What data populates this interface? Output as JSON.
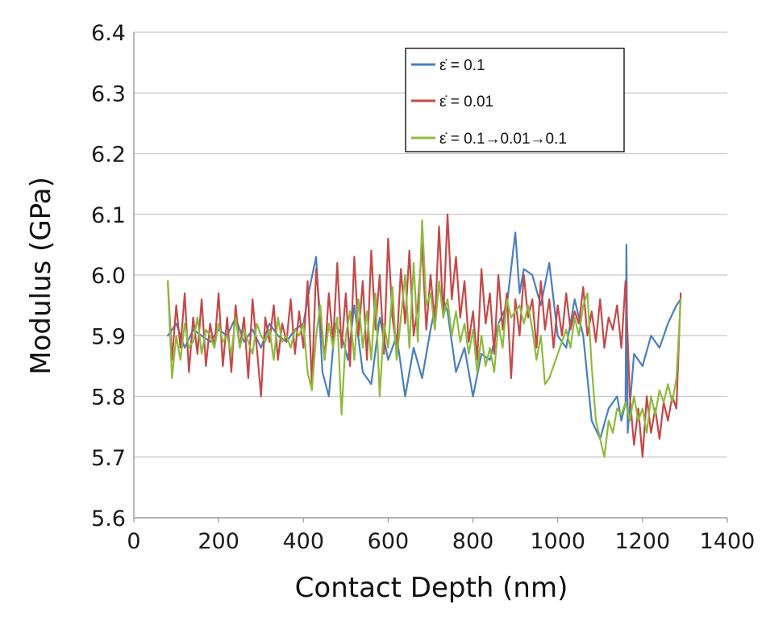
{
  "chart_data": {
    "type": "line",
    "title": "",
    "xlabel": "Contact Depth (nm)",
    "ylabel": "Modulus (GPa)",
    "xlim": [
      0,
      1400
    ],
    "ylim": [
      5.6,
      6.4
    ],
    "xticks": [
      "0",
      "200",
      "400",
      "600",
      "800",
      "1000",
      "1200",
      "1400"
    ],
    "yticks": [
      "5.6",
      "5.7",
      "5.8",
      "5.9",
      "6.0",
      "6.1",
      "6.2",
      "6.3",
      "6.4"
    ],
    "grid": "horizontal",
    "legend_position": "top-right",
    "series": [
      {
        "name": "ε̇ = 0.1",
        "color": "#4a7fbd",
        "x": [
          80,
          100,
          120,
          140,
          160,
          180,
          200,
          220,
          240,
          260,
          280,
          300,
          320,
          340,
          360,
          380,
          400,
          415,
          430,
          445,
          460,
          475,
          490,
          505,
          520,
          540,
          560,
          580,
          600,
          620,
          640,
          660,
          680,
          700,
          720,
          740,
          760,
          780,
          800,
          820,
          840,
          860,
          880,
          900,
          910,
          920,
          940,
          960,
          980,
          1000,
          1020,
          1040,
          1060,
          1080,
          1100,
          1120,
          1140,
          1150,
          1160,
          1162,
          1165,
          1180,
          1200,
          1220,
          1240,
          1260,
          1280,
          1290
        ],
        "y": [
          5.9,
          5.92,
          5.88,
          5.91,
          5.9,
          5.89,
          5.91,
          5.9,
          5.93,
          5.89,
          5.91,
          5.88,
          5.92,
          5.9,
          5.89,
          5.91,
          5.92,
          5.98,
          6.03,
          5.84,
          5.8,
          5.92,
          5.9,
          5.86,
          5.95,
          5.84,
          5.82,
          5.93,
          5.86,
          5.9,
          5.8,
          5.88,
          5.83,
          5.91,
          5.98,
          5.94,
          5.84,
          5.88,
          5.8,
          5.87,
          5.86,
          5.92,
          5.95,
          6.07,
          5.97,
          6.01,
          6.0,
          5.95,
          6.02,
          5.9,
          5.88,
          5.96,
          5.9,
          5.76,
          5.73,
          5.78,
          5.8,
          5.76,
          5.79,
          6.05,
          5.74,
          5.87,
          5.85,
          5.9,
          5.88,
          5.92,
          5.95,
          5.96
        ]
      },
      {
        "name": "ε̇ = 0.01",
        "color": "#c64848",
        "x": [
          80,
          90,
          100,
          110,
          120,
          130,
          140,
          150,
          160,
          170,
          180,
          190,
          200,
          210,
          220,
          230,
          240,
          250,
          260,
          270,
          280,
          290,
          300,
          310,
          320,
          330,
          340,
          350,
          360,
          370,
          380,
          390,
          400,
          410,
          420,
          430,
          440,
          450,
          460,
          470,
          480,
          490,
          500,
          510,
          520,
          530,
          540,
          550,
          560,
          570,
          580,
          590,
          600,
          610,
          620,
          630,
          640,
          650,
          660,
          670,
          680,
          690,
          700,
          710,
          720,
          730,
          740,
          750,
          760,
          770,
          780,
          790,
          800,
          810,
          820,
          830,
          840,
          850,
          860,
          870,
          880,
          890,
          900,
          910,
          920,
          930,
          940,
          950,
          960,
          970,
          980,
          990,
          1000,
          1010,
          1020,
          1030,
          1040,
          1050,
          1060,
          1070,
          1080,
          1090,
          1100,
          1110,
          1120,
          1130,
          1140,
          1150,
          1160,
          1170,
          1180,
          1190,
          1200,
          1210,
          1220,
          1230,
          1240,
          1250,
          1260,
          1270,
          1280,
          1290
        ],
        "y": [
          5.99,
          5.86,
          5.95,
          5.88,
          5.97,
          5.84,
          5.93,
          5.87,
          5.96,
          5.85,
          5.92,
          5.88,
          5.97,
          5.85,
          5.93,
          5.84,
          5.95,
          5.88,
          5.93,
          5.83,
          5.96,
          5.88,
          5.8,
          5.93,
          5.89,
          5.95,
          5.86,
          5.92,
          5.89,
          5.96,
          5.87,
          5.94,
          5.88,
          5.99,
          5.82,
          6.01,
          5.93,
          5.86,
          5.97,
          5.89,
          6.02,
          5.88,
          5.97,
          5.85,
          6.03,
          5.9,
          5.99,
          5.86,
          6.04,
          5.91,
          6.0,
          5.87,
          6.06,
          5.93,
          5.88,
          6.01,
          5.92,
          6.04,
          5.9,
          5.95,
          6.05,
          5.91,
          6.0,
          5.92,
          6.08,
          5.93,
          6.1,
          5.96,
          6.03,
          5.93,
          5.99,
          5.89,
          5.94,
          5.86,
          6.01,
          5.92,
          5.97,
          5.87,
          6.0,
          5.91,
          5.97,
          5.83,
          5.96,
          5.9,
          6.0,
          5.93,
          5.96,
          5.88,
          5.99,
          5.91,
          5.96,
          5.88,
          5.95,
          5.9,
          5.97,
          5.91,
          5.94,
          5.92,
          5.98,
          5.9,
          5.94,
          5.89,
          5.96,
          5.88,
          5.93,
          5.91,
          5.95,
          5.88,
          5.99,
          5.8,
          5.72,
          5.78,
          5.7,
          5.8,
          5.74,
          5.78,
          5.73,
          5.79,
          5.76,
          5.8,
          5.78,
          5.97
        ]
      },
      {
        "name": "ε̇ = 0.1→0.01→0.1",
        "color": "#8dbb3f",
        "x": [
          80,
          90,
          100,
          110,
          120,
          130,
          140,
          150,
          160,
          170,
          180,
          190,
          200,
          210,
          220,
          230,
          240,
          250,
          260,
          270,
          280,
          290,
          300,
          310,
          320,
          330,
          340,
          350,
          360,
          370,
          380,
          390,
          400,
          410,
          420,
          430,
          440,
          450,
          460,
          470,
          480,
          490,
          500,
          510,
          520,
          530,
          540,
          550,
          560,
          570,
          580,
          590,
          600,
          610,
          620,
          630,
          640,
          650,
          660,
          670,
          680,
          690,
          700,
          710,
          720,
          730,
          740,
          750,
          760,
          770,
          780,
          790,
          800,
          810,
          820,
          830,
          840,
          850,
          860,
          870,
          880,
          890,
          900,
          910,
          920,
          930,
          940,
          950,
          960,
          970,
          980,
          990,
          1000,
          1010,
          1020,
          1030,
          1040,
          1050,
          1060,
          1070,
          1080,
          1090,
          1100,
          1110,
          1120,
          1130,
          1140,
          1150,
          1160,
          1170,
          1180,
          1190,
          1200,
          1210,
          1220,
          1230,
          1240,
          1250,
          1260,
          1270,
          1280,
          1290
        ],
        "y": [
          5.99,
          5.83,
          5.9,
          5.86,
          5.92,
          5.88,
          5.89,
          5.93,
          5.87,
          5.91,
          5.9,
          5.88,
          5.92,
          5.89,
          5.9,
          5.87,
          5.93,
          5.88,
          5.91,
          5.89,
          5.87,
          5.92,
          5.9,
          5.89,
          5.91,
          5.86,
          5.93,
          5.89,
          5.9,
          5.88,
          5.91,
          5.9,
          5.92,
          5.84,
          5.81,
          5.9,
          5.95,
          5.86,
          5.92,
          5.88,
          5.93,
          5.77,
          5.9,
          5.94,
          5.86,
          5.96,
          5.88,
          5.94,
          5.86,
          5.97,
          5.8,
          5.92,
          5.88,
          5.98,
          5.86,
          5.93,
          6.0,
          5.88,
          6.02,
          5.89,
          6.09,
          5.95,
          5.97,
          5.91,
          5.99,
          5.93,
          5.96,
          5.9,
          5.94,
          5.89,
          5.92,
          5.87,
          5.91,
          5.84,
          5.9,
          5.85,
          5.88,
          5.84,
          5.92,
          5.88,
          5.96,
          5.93,
          5.94,
          5.95,
          5.92,
          5.95,
          5.91,
          5.86,
          5.9,
          5.82,
          5.83,
          5.85,
          5.87,
          5.89,
          5.91,
          5.88,
          5.93,
          5.9,
          5.95,
          5.97,
          5.85,
          5.76,
          5.73,
          5.7,
          5.76,
          5.74,
          5.78,
          5.77,
          5.79,
          5.76,
          5.8,
          5.76,
          5.78,
          5.74,
          5.8,
          5.77,
          5.81,
          5.79,
          5.82,
          5.79,
          5.83,
          5.96
        ]
      }
    ]
  }
}
